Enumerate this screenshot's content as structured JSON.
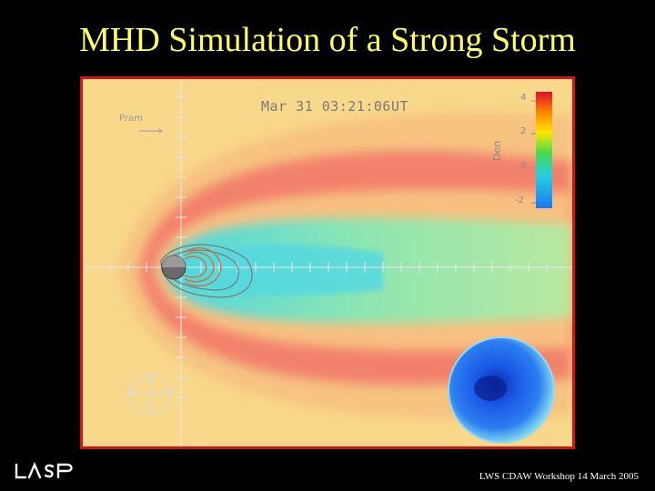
{
  "slide": {
    "title": "MHD Simulation of a Strong Storm",
    "footer": "LWS CDAW Workshop 14 March 2005",
    "logo_text": "LASP"
  },
  "plot": {
    "timestamp": "Mar 31 03:21:06UT",
    "pram_label": "Pram",
    "colorbar_title": "Den",
    "colorbar_ticks": [
      "4",
      "2",
      "0",
      "-2"
    ],
    "compass": {
      "north": "N",
      "south": "S",
      "west": "W",
      "dusk": "D"
    }
  },
  "colors": {
    "title": "#ffff66",
    "frame_border": "#d01515",
    "background_field": "#f8d88a",
    "sheath": "#f27a6a",
    "tail": "#8fe0a0",
    "polar_cap": "#1a4fe0"
  }
}
